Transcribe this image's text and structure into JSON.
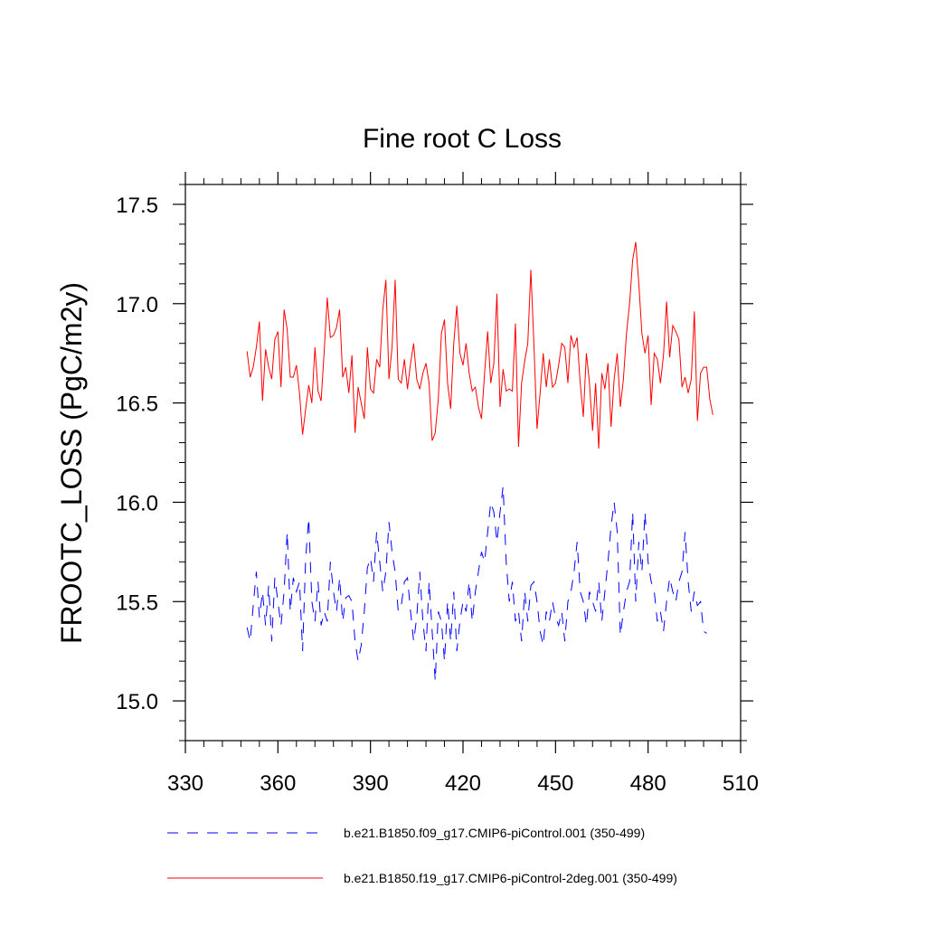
{
  "chart_data": {
    "type": "line",
    "title": "Fine root C Loss",
    "xlabel": "",
    "ylabel": "FROOTC_LOSS  (PgC/m2y)",
    "xlim": [
      330,
      510
    ],
    "ylim": [
      14.8,
      17.6
    ],
    "x_ticks": [
      330,
      360,
      390,
      420,
      450,
      480,
      510
    ],
    "x_tick_labels": [
      "330",
      "360",
      "390",
      "420",
      "450",
      "480",
      "510"
    ],
    "y_ticks": [
      15.0,
      15.5,
      16.0,
      16.5,
      17.0,
      17.5
    ],
    "y_tick_labels": [
      "15.0",
      "15.5",
      "16.0",
      "16.5",
      "17.0",
      "17.5"
    ],
    "grid": false,
    "legend_position": "bottom",
    "colors": {
      "blue": "#0000ff",
      "red": "#ff0000"
    },
    "series": [
      {
        "name": "b.e21.B1850.f09_g17.CMIP6-piControl.001 (350-499)",
        "color": "#0000ff",
        "style": "dashed",
        "x_start": 350,
        "x_step": 1,
        "values": [
          15.37,
          15.3,
          15.48,
          15.65,
          15.42,
          15.55,
          15.38,
          15.58,
          15.3,
          15.62,
          15.5,
          15.38,
          15.55,
          15.85,
          15.45,
          15.62,
          15.55,
          15.6,
          15.25,
          15.72,
          15.92,
          15.5,
          15.4,
          15.6,
          15.38,
          15.45,
          15.4,
          15.7,
          15.55,
          15.45,
          15.62,
          15.4,
          15.52,
          15.53,
          15.5,
          15.3,
          15.2,
          15.28,
          15.45,
          15.67,
          15.72,
          15.6,
          15.85,
          15.7,
          15.55,
          15.65,
          15.9,
          15.75,
          15.65,
          15.45,
          15.48,
          15.6,
          15.62,
          15.45,
          15.3,
          15.42,
          15.65,
          15.4,
          15.25,
          15.6,
          15.35,
          15.1,
          15.45,
          15.4,
          15.2,
          15.5,
          15.3,
          15.55,
          15.25,
          15.4,
          15.5,
          15.45,
          15.6,
          15.4,
          15.55,
          15.65,
          15.75,
          15.7,
          15.85,
          16.0,
          15.95,
          15.8,
          15.95,
          16.08,
          15.7,
          15.5,
          15.6,
          15.4,
          15.45,
          15.3,
          15.55,
          15.4,
          15.58,
          15.6,
          15.5,
          15.35,
          15.28,
          15.45,
          15.4,
          15.5,
          15.42,
          15.38,
          15.45,
          15.3,
          15.5,
          15.55,
          15.65,
          15.8,
          15.55,
          15.5,
          15.38,
          15.55,
          15.5,
          15.45,
          15.6,
          15.4,
          15.55,
          15.7,
          15.88,
          16.0,
          15.85,
          15.33,
          15.45,
          15.55,
          15.6,
          15.95,
          15.5,
          15.8,
          15.65,
          15.95,
          15.7,
          15.6,
          15.55,
          15.4,
          15.45,
          15.35,
          15.5,
          15.62,
          15.55,
          15.5,
          15.6,
          15.65,
          15.85,
          15.6,
          15.45,
          15.55,
          15.48,
          15.5,
          15.35,
          15.34
        ]
      },
      {
        "name": "b.e21.B1850.f19_g17.CMIP6-piControl-2deg.001 (350-499)",
        "color": "#ff0000",
        "style": "solid",
        "x_start": 350,
        "x_step": 1,
        "values": [
          16.76,
          16.63,
          16.68,
          16.78,
          16.91,
          16.51,
          16.77,
          16.68,
          16.62,
          16.82,
          16.86,
          16.58,
          16.97,
          16.87,
          16.63,
          16.63,
          16.69,
          16.55,
          16.34,
          16.47,
          16.59,
          16.5,
          16.78,
          16.56,
          16.51,
          16.76,
          17.03,
          16.83,
          16.84,
          16.88,
          16.97,
          16.63,
          16.68,
          16.55,
          16.74,
          16.35,
          16.58,
          16.5,
          16.42,
          16.78,
          16.57,
          16.55,
          16.72,
          16.68,
          16.97,
          17.12,
          16.62,
          16.78,
          17.12,
          16.62,
          16.6,
          16.72,
          16.57,
          16.7,
          16.8,
          16.62,
          16.57,
          16.65,
          16.7,
          16.6,
          16.31,
          16.35,
          16.52,
          16.85,
          16.92,
          16.6,
          16.47,
          16.8,
          16.99,
          16.75,
          16.69,
          16.8,
          16.65,
          16.56,
          16.58,
          16.48,
          16.42,
          16.65,
          16.86,
          16.6,
          16.7,
          17.05,
          16.48,
          16.67,
          16.56,
          16.57,
          16.56,
          16.9,
          16.28,
          16.6,
          16.71,
          16.8,
          17.17,
          16.79,
          16.37,
          16.55,
          16.75,
          16.58,
          16.72,
          16.58,
          16.6,
          16.69,
          16.8,
          16.78,
          16.6,
          16.84,
          16.78,
          16.83,
          16.6,
          16.43,
          16.75,
          16.6,
          16.36,
          16.6,
          16.27,
          16.65,
          16.57,
          16.7,
          16.38,
          16.62,
          16.75,
          16.48,
          16.62,
          16.85,
          17.0,
          17.22,
          17.31,
          17.1,
          16.85,
          16.75,
          16.84,
          16.49,
          16.75,
          16.72,
          16.6,
          16.74,
          17.01,
          16.73,
          16.89,
          16.86,
          16.82,
          16.58,
          16.63,
          16.55,
          16.62,
          16.96,
          16.41,
          16.65,
          16.68,
          16.68,
          16.52,
          16.44
        ]
      }
    ]
  }
}
